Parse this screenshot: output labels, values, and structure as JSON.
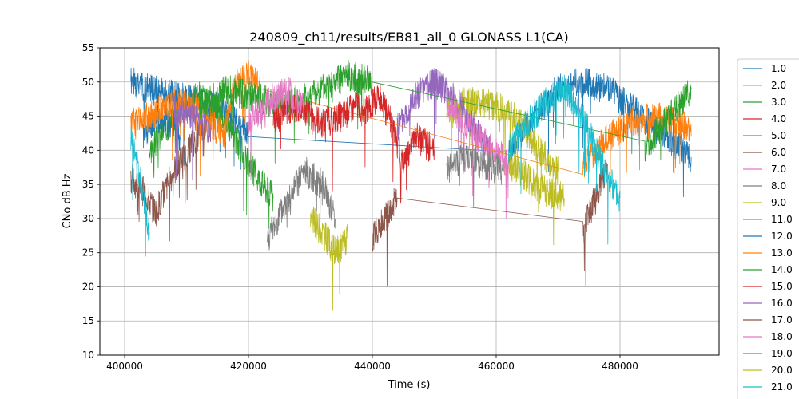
{
  "chart_data": {
    "type": "line",
    "title": "240809_ch11/results/EB81_all_0 GLONASS L1(CA)",
    "xlabel": "Time (s)",
    "ylabel": "CNo dB Hz",
    "xlim": [
      396000,
      496000
    ],
    "ylim": [
      10,
      55
    ],
    "xticks": [
      400000,
      420000,
      440000,
      460000,
      480000
    ],
    "xtick_labels": [
      "400000",
      "420000",
      "440000",
      "460000",
      "480000"
    ],
    "yticks": [
      10,
      15,
      20,
      25,
      30,
      35,
      40,
      45,
      50,
      55
    ],
    "ytick_labels": [
      "10",
      "15",
      "20",
      "25",
      "30",
      "35",
      "40",
      "45",
      "50",
      "55"
    ],
    "grid": true,
    "legend_position": "right, outside plot",
    "series": [
      {
        "name": "1.0",
        "color": "#1f77b4",
        "x": [
          401000,
          404000,
          408000,
          412000,
          416000,
          420000,
          462000,
          466000,
          470000,
          474000,
          478000,
          482000,
          486000,
          490000,
          491500
        ],
        "y": [
          50,
          49,
          48,
          47,
          46,
          42,
          40,
          45,
          49,
          50,
          49,
          46,
          43,
          40,
          39
        ]
      },
      {
        "name": "2.0",
        "color": "#bcbd22",
        "x": [
          452000,
          455000,
          458000,
          461000,
          464000,
          467000,
          470000
        ],
        "y": [
          46,
          47,
          47,
          46,
          44,
          40,
          37
        ]
      },
      {
        "name": "3.0",
        "color": "#2ca02c",
        "x": [
          404000,
          408000,
          412000,
          416000,
          420000,
          424000
        ],
        "y": [
          40,
          45,
          48,
          45,
          38,
          33
        ]
      },
      {
        "name": "4.0",
        "color": "#d62728",
        "x": [
          438000,
          441000,
          443000,
          445000,
          447000,
          450000
        ],
        "y": [
          45,
          48,
          44,
          38,
          42,
          40
        ]
      },
      {
        "name": "5.0",
        "color": "#9467bd",
        "x": [
          444000,
          447000,
          450000,
          453000,
          456000,
          459000
        ],
        "y": [
          43,
          48,
          50,
          48,
          44,
          40
        ]
      },
      {
        "name": "6.0",
        "color": "#8c564b",
        "x": [
          401000,
          403000,
          405000,
          408000,
          411000,
          414000
        ],
        "y": [
          36,
          34,
          31,
          37,
          41,
          45
        ]
      },
      {
        "name": "7.0",
        "color": "#e377c2",
        "x": [
          452000,
          454000,
          457000,
          460000,
          462000
        ],
        "y": [
          47,
          45,
          42,
          40,
          38
        ]
      },
      {
        "name": "8.0",
        "color": "#7f7f7f",
        "x": [
          423000,
          426000,
          429000,
          432000,
          434000
        ],
        "y": [
          27,
          32,
          37,
          35,
          30
        ]
      },
      {
        "name": "9.0",
        "color": "#bcbd22",
        "x": [
          430000,
          432000,
          434000,
          436000
        ],
        "y": [
          30,
          28,
          25,
          27
        ]
      },
      {
        "name": "11.0",
        "color": "#17becf",
        "x": [
          401000,
          402500,
          404000
        ],
        "y": [
          42,
          36,
          28
        ]
      },
      {
        "name": "12.0",
        "color": "#1f77b4",
        "x": [
          403000,
          405000,
          407000,
          409000
        ],
        "y": [
          42,
          45,
          44,
          42
        ]
      },
      {
        "name": "13.0",
        "color": "#ff7f0e",
        "x": [
          401000,
          404000,
          408000,
          412000,
          416000,
          418000,
          420000,
          422000,
          474000,
          478000,
          482000,
          486000,
          490000,
          491500
        ],
        "y": [
          44,
          45,
          47,
          46,
          42,
          50,
          51,
          49,
          38,
          42,
          44,
          45,
          44,
          42
        ]
      },
      {
        "name": "14.0",
        "color": "#2ca02c",
        "x": [
          412000,
          416000,
          420000,
          424000,
          428000,
          432000,
          436000,
          440000,
          484000,
          487000,
          490000,
          491500
        ],
        "y": [
          46,
          49,
          48,
          47,
          47,
          49,
          51,
          50,
          40,
          44,
          47,
          49
        ]
      },
      {
        "name": "15.0",
        "color": "#d62728",
        "x": [
          424000,
          426000,
          429000,
          432000,
          435000,
          438000
        ],
        "y": [
          44,
          46,
          46,
          44,
          45,
          47
        ]
      },
      {
        "name": "16.0",
        "color": "#9467bd",
        "x": [
          408000,
          411000,
          414000
        ],
        "y": [
          46,
          45,
          43
        ]
      },
      {
        "name": "17.0",
        "color": "#8c564b",
        "x": [
          440000,
          442000,
          444000,
          474000,
          476000,
          478000
        ],
        "y": [
          27,
          30,
          33,
          28,
          33,
          38
        ]
      },
      {
        "name": "18.0",
        "color": "#e377c2",
        "x": [
          420000,
          423000,
          426000,
          429000
        ],
        "y": [
          44,
          47,
          49,
          47
        ]
      },
      {
        "name": "19.0",
        "color": "#7f7f7f",
        "x": [
          452000,
          455000,
          458000,
          461000
        ],
        "y": [
          37,
          39,
          38,
          37
        ]
      },
      {
        "name": "20.0",
        "color": "#bcbd22",
        "x": [
          462000,
          465000,
          468000,
          471000
        ],
        "y": [
          38,
          36,
          34,
          33
        ]
      },
      {
        "name": "21.0",
        "color": "#17becf",
        "x": [
          462000,
          465000,
          468000,
          471000,
          474000,
          477000,
          480000
        ],
        "y": [
          40,
          44,
          47,
          49,
          45,
          38,
          33
        ]
      }
    ]
  }
}
